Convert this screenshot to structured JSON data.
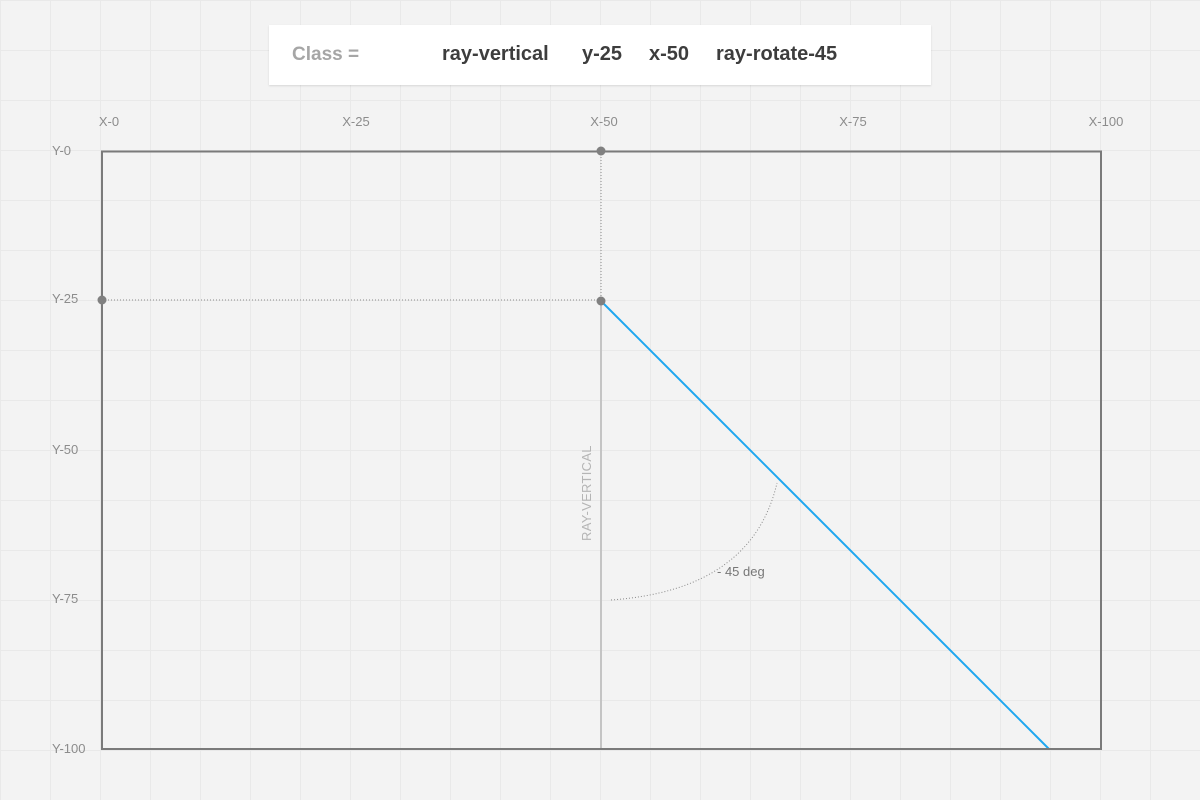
{
  "class_bar": {
    "label": "Class =",
    "tokens": [
      "ray-vertical",
      "y-25",
      "x-50",
      "ray-rotate-45"
    ]
  },
  "axes": {
    "x_labels": [
      "X-0",
      "X-25",
      "X-50",
      "X-75",
      "X-100"
    ],
    "y_labels": [
      "Y-0",
      "Y-25",
      "Y-50",
      "Y-75",
      "Y-100"
    ]
  },
  "ray": {
    "label": "RAY-VERTICAL",
    "origin_x": 50,
    "origin_y": 25,
    "rotation_deg": 45,
    "angle_label": "- 45 deg"
  },
  "colors": {
    "ray": "#1ea7f0",
    "frame": "#7a7a7a",
    "point": "#808080"
  }
}
